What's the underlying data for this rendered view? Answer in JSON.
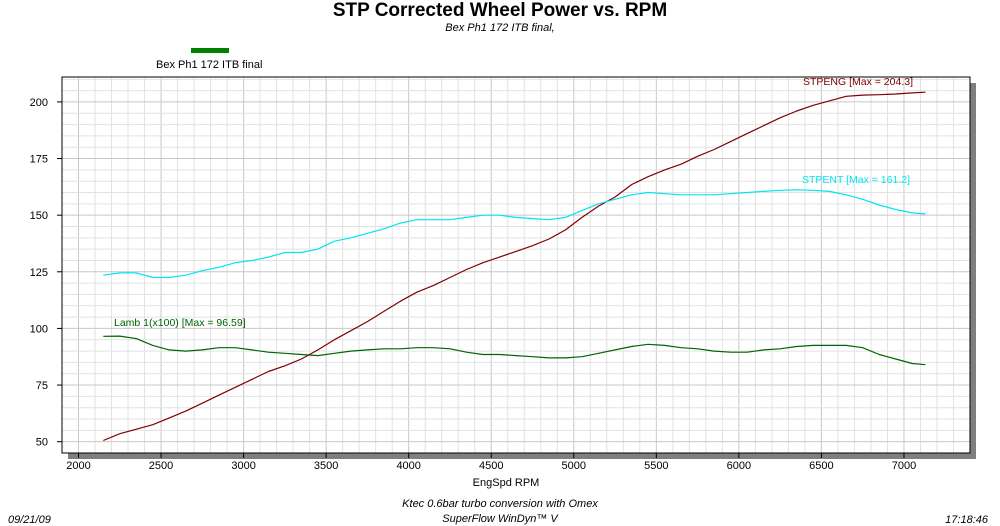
{
  "header": {
    "title": "STP Corrected Wheel Power vs. RPM",
    "subtitle": "Bex Ph1 172 ITB final,"
  },
  "legend": {
    "label": "Bex Ph1 172 ITB final",
    "color": "#008000"
  },
  "footer": {
    "date": "09/21/09",
    "time": "17:18:46",
    "note": "Ktec 0.6bar turbo conversion with Omex",
    "software": "SuperFlow WinDyn™ V"
  },
  "chart_data": {
    "type": "line",
    "title": "STP Corrected Wheel Power vs. RPM",
    "subtitle": "Bex Ph1 172 ITB final,",
    "xlabel": "EngSpd  RPM",
    "ylabel": "",
    "xlim": [
      1900,
      7400
    ],
    "ylim": [
      45,
      211
    ],
    "xticks": [
      2000,
      2500,
      3000,
      3500,
      4000,
      4500,
      5000,
      5500,
      6000,
      6500,
      7000
    ],
    "yticks": [
      50,
      75,
      100,
      125,
      150,
      175,
      200
    ],
    "grid": true,
    "series": [
      {
        "name": "STPENG",
        "label": "STPENG [Max = 204.3]",
        "color": "#800000",
        "x": [
          2150,
          2250,
          2350,
          2450,
          2550,
          2650,
          2750,
          2850,
          2950,
          3050,
          3150,
          3250,
          3350,
          3450,
          3550,
          3650,
          3750,
          3850,
          3950,
          4050,
          4150,
          4250,
          4350,
          4450,
          4550,
          4650,
          4750,
          4850,
          4950,
          5050,
          5150,
          5250,
          5350,
          5450,
          5550,
          5650,
          5750,
          5850,
          5950,
          6050,
          6150,
          6250,
          6350,
          6450,
          6550,
          6650,
          6750,
          6850,
          6950,
          7050,
          7130
        ],
        "y": [
          50.5,
          53.5,
          55.5,
          57.5,
          60.5,
          63.5,
          67,
          70.5,
          74,
          77.5,
          81,
          83.5,
          86.5,
          90.5,
          95,
          99,
          103,
          107.5,
          112,
          116,
          119,
          122.5,
          126,
          129,
          131.5,
          134,
          136.5,
          139.5,
          143.5,
          149,
          154,
          158,
          163.5,
          167,
          170,
          172.5,
          176,
          179,
          182.5,
          186,
          189.5,
          193,
          196,
          198.5,
          200.5,
          202.5,
          203,
          203.2,
          203.5,
          204,
          204.3
        ]
      },
      {
        "name": "STPENT",
        "label": "STPENT [Max = 161.2]",
        "color": "#00e5ee",
        "x": [
          2150,
          2250,
          2350,
          2450,
          2550,
          2650,
          2750,
          2850,
          2950,
          3050,
          3150,
          3250,
          3350,
          3450,
          3550,
          3650,
          3750,
          3850,
          3950,
          4050,
          4150,
          4250,
          4350,
          4450,
          4550,
          4650,
          4750,
          4850,
          4950,
          5050,
          5150,
          5250,
          5350,
          5450,
          5550,
          5650,
          5750,
          5850,
          5950,
          6050,
          6150,
          6250,
          6350,
          6450,
          6550,
          6650,
          6750,
          6850,
          6950,
          7050,
          7130
        ],
        "y": [
          123.5,
          124.5,
          124.5,
          122.5,
          122.5,
          123.5,
          125.5,
          127,
          129,
          130,
          131.5,
          133.5,
          133.5,
          135,
          138.5,
          140,
          142,
          144,
          146.5,
          148,
          148,
          148,
          149,
          150,
          150,
          149,
          148.5,
          148,
          149,
          152,
          155,
          157,
          159,
          160,
          159.5,
          159,
          159,
          159,
          159.5,
          160,
          160.5,
          161,
          161.2,
          161,
          160.5,
          159,
          157,
          154.5,
          152.5,
          151,
          150.5
        ]
      },
      {
        "name": "Lamb 1(x100)",
        "label": "Lamb 1(x100) [Max = 96.59]",
        "color": "#006400",
        "x": [
          2150,
          2250,
          2350,
          2450,
          2550,
          2650,
          2750,
          2850,
          2950,
          3050,
          3150,
          3250,
          3350,
          3450,
          3550,
          3650,
          3750,
          3850,
          3950,
          4050,
          4150,
          4250,
          4350,
          4450,
          4550,
          4650,
          4750,
          4850,
          4950,
          5050,
          5150,
          5250,
          5350,
          5450,
          5550,
          5650,
          5750,
          5850,
          5950,
          6050,
          6150,
          6250,
          6350,
          6450,
          6550,
          6650,
          6750,
          6850,
          6950,
          7050,
          7130
        ],
        "y": [
          96.5,
          96.59,
          95.5,
          92.5,
          90.5,
          90,
          90.5,
          91.5,
          91.5,
          90.5,
          89.5,
          89,
          88.5,
          88,
          89,
          90,
          90.5,
          91,
          91,
          91.5,
          91.5,
          91,
          89.5,
          88.5,
          88.5,
          88,
          87.5,
          87,
          87,
          87.5,
          89,
          90.5,
          92,
          93,
          92.5,
          91.5,
          91,
          90,
          89.5,
          89.5,
          90.5,
          91,
          92,
          92.5,
          92.5,
          92.5,
          91.5,
          88.5,
          86.5,
          84.5,
          84
        ]
      }
    ],
    "annotations": [
      {
        "text": "STPENG [Max = 204.3]",
        "color": "#800000"
      },
      {
        "text": "STPENT [Max = 161.2]",
        "color": "#00e5ee"
      },
      {
        "text": "Lamb 1(x100) [Max = 96.59]",
        "color": "#006400"
      }
    ]
  }
}
